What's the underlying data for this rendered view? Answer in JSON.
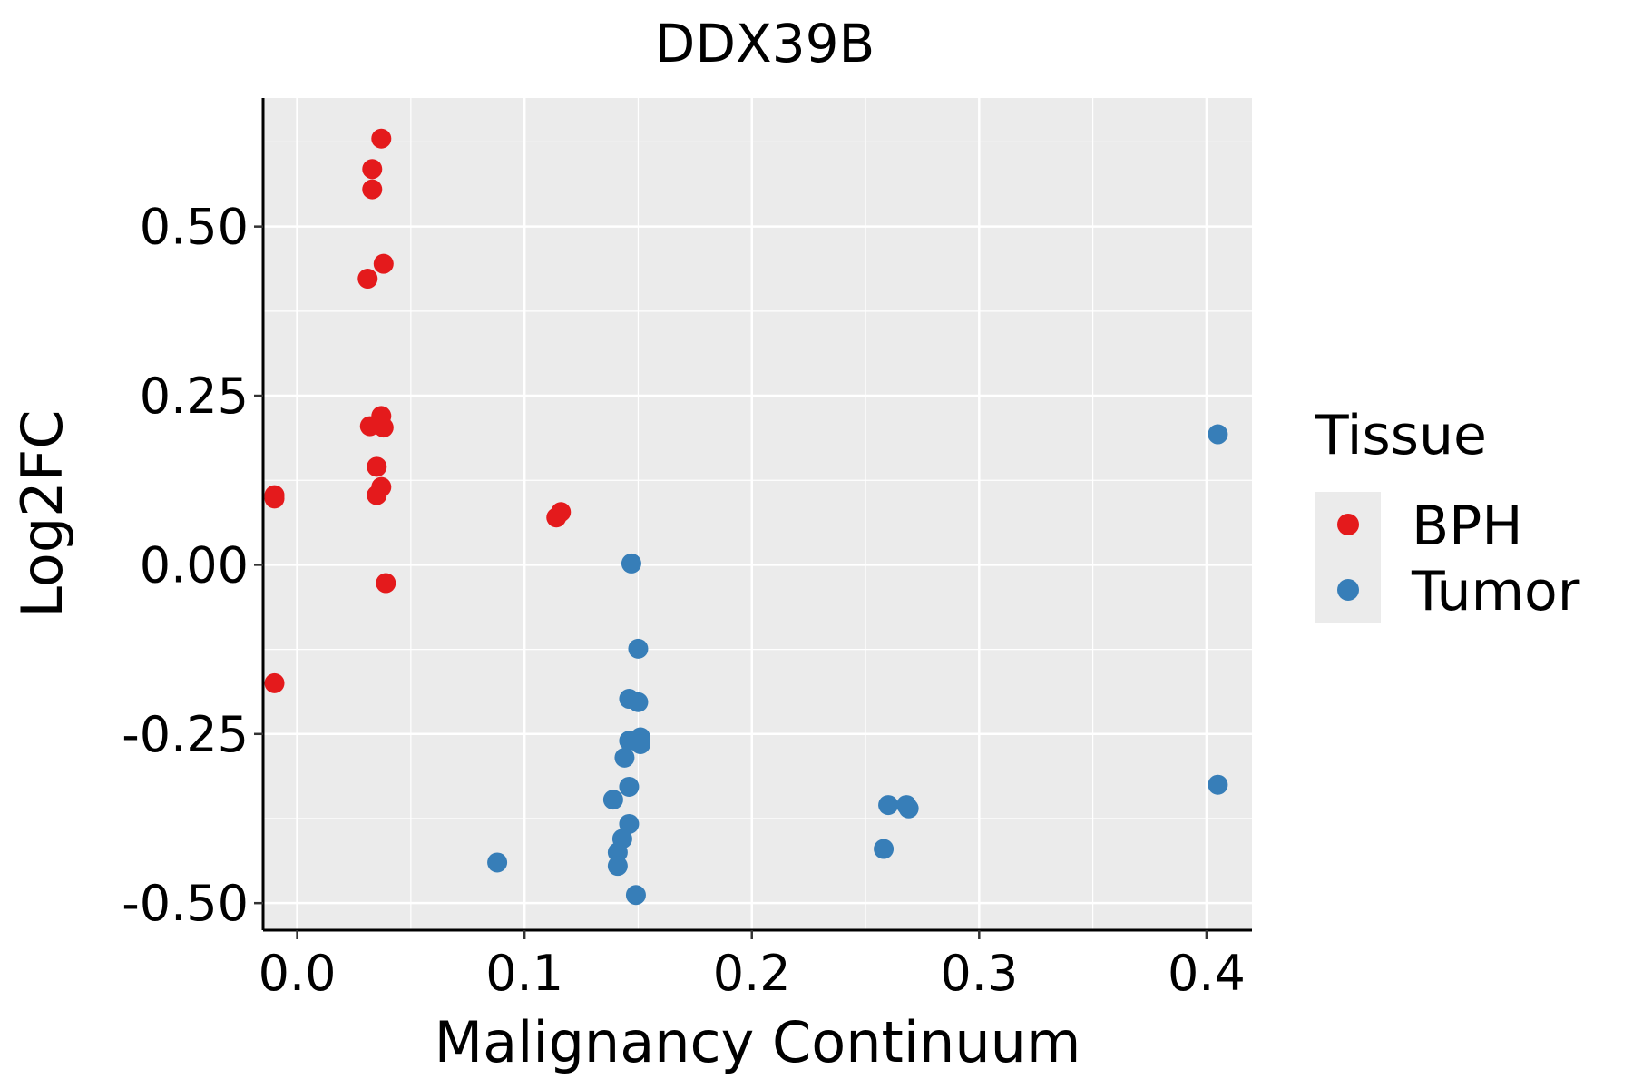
{
  "chart_data": {
    "type": "scatter",
    "title": "DDX39B",
    "xlabel": "Malignancy Continuum",
    "ylabel": "Log2FC",
    "xlim": [
      -0.015,
      0.42
    ],
    "ylim": [
      -0.54,
      0.69
    ],
    "xticks": [
      0.0,
      0.1,
      0.2,
      0.3,
      0.4
    ],
    "xtick_labels": [
      "0.0",
      "0.1",
      "0.2",
      "0.3",
      "0.4"
    ],
    "yticks": [
      -0.5,
      -0.25,
      0.0,
      0.25,
      0.5
    ],
    "ytick_labels": [
      "-0.50",
      "-0.25",
      "0.00",
      "0.25",
      "0.50"
    ],
    "grid": true,
    "legend": {
      "title": "Tissue",
      "position": "right"
    },
    "series": [
      {
        "name": "BPH",
        "color": "#E41A1C",
        "points": [
          {
            "x": 0.037,
            "y": 0.63
          },
          {
            "x": 0.033,
            "y": 0.585
          },
          {
            "x": 0.033,
            "y": 0.555
          },
          {
            "x": 0.038,
            "y": 0.445
          },
          {
            "x": 0.031,
            "y": 0.423
          },
          {
            "x": 0.037,
            "y": 0.22
          },
          {
            "x": 0.032,
            "y": 0.205
          },
          {
            "x": 0.038,
            "y": 0.203
          },
          {
            "x": 0.035,
            "y": 0.145
          },
          {
            "x": 0.037,
            "y": 0.115
          },
          {
            "x": 0.035,
            "y": 0.103
          },
          {
            "x": -0.01,
            "y": 0.103
          },
          {
            "x": -0.01,
            "y": 0.098
          },
          {
            "x": 0.116,
            "y": 0.078
          },
          {
            "x": 0.114,
            "y": 0.07
          },
          {
            "x": 0.039,
            "y": -0.027
          },
          {
            "x": -0.01,
            "y": -0.175
          }
        ]
      },
      {
        "name": "Tumor",
        "color": "#377EB8",
        "points": [
          {
            "x": 0.405,
            "y": 0.193
          },
          {
            "x": 0.147,
            "y": 0.002
          },
          {
            "x": 0.15,
            "y": -0.124
          },
          {
            "x": 0.146,
            "y": -0.198
          },
          {
            "x": 0.15,
            "y": -0.203
          },
          {
            "x": 0.151,
            "y": -0.255
          },
          {
            "x": 0.146,
            "y": -0.26
          },
          {
            "x": 0.151,
            "y": -0.265
          },
          {
            "x": 0.144,
            "y": -0.285
          },
          {
            "x": 0.146,
            "y": -0.328
          },
          {
            "x": 0.139,
            "y": -0.347
          },
          {
            "x": 0.146,
            "y": -0.383
          },
          {
            "x": 0.143,
            "y": -0.405
          },
          {
            "x": 0.141,
            "y": -0.425
          },
          {
            "x": 0.141,
            "y": -0.445
          },
          {
            "x": 0.088,
            "y": -0.44
          },
          {
            "x": 0.149,
            "y": -0.488
          },
          {
            "x": 0.258,
            "y": -0.42
          },
          {
            "x": 0.26,
            "y": -0.355
          },
          {
            "x": 0.268,
            "y": -0.355
          },
          {
            "x": 0.269,
            "y": -0.36
          },
          {
            "x": 0.405,
            "y": -0.325
          }
        ]
      }
    ]
  }
}
